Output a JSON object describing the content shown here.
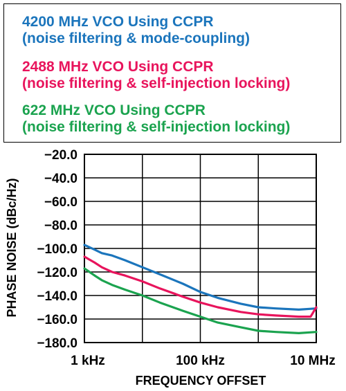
{
  "chart_data": {
    "type": "line",
    "xlabel": "FREQUENCY OFFSET",
    "ylabel": "PHASE NOISE (dBc/Hz)",
    "x_scale": "log",
    "xlim": [
      1000,
      10000000
    ],
    "ylim": [
      -180,
      -20
    ],
    "x_tick_values": [
      1000,
      100000,
      10000000
    ],
    "x_tick_labels": [
      "1 kHz",
      "100 kHz",
      "10 MHz"
    ],
    "y_tick_values": [
      -20,
      -40,
      -60,
      -80,
      -100,
      -120,
      -140,
      -160,
      -180
    ],
    "y_tick_labels": [
      "−20.0",
      "−40.0",
      "−60.0",
      "−80.0",
      "−100.0",
      "−120.0",
      "−140.0",
      "−160.0",
      "−180.0"
    ],
    "grid": true,
    "legend_position": "top",
    "series": [
      {
        "name": "4200 MHz VCO Using CCPR",
        "name_line2": "(noise filtering & mode-coupling)",
        "color": "#1b75bc",
        "x": [
          1000,
          1500,
          2000,
          3000,
          5000,
          10000,
          20000,
          50000,
          100000,
          200000,
          500000,
          1000000,
          2000000,
          5000000,
          10000000
        ],
        "y": [
          -97,
          -101,
          -104,
          -106,
          -110,
          -116,
          -122,
          -130,
          -137,
          -142,
          -147,
          -150,
          -151,
          -152,
          -151
        ]
      },
      {
        "name": "2488 MHz VCO Using CCPR",
        "name_line2": "(noise filtering & self-injection locking)",
        "color": "#e8145c",
        "x": [
          1000,
          1500,
          2000,
          3000,
          5000,
          10000,
          20000,
          50000,
          100000,
          200000,
          500000,
          1000000,
          2000000,
          5000000,
          8000000,
          10000000
        ],
        "y": [
          -107,
          -112,
          -116,
          -120,
          -123,
          -128,
          -134,
          -141,
          -146,
          -150,
          -154,
          -156,
          -157,
          -158,
          -158,
          -150
        ]
      },
      {
        "name": "622 MHz VCO Using CCPR",
        "name_line2": "(noise filtering & self-injection locking)",
        "color": "#1ba34f",
        "x": [
          1000,
          1500,
          2000,
          3000,
          5000,
          10000,
          20000,
          50000,
          100000,
          200000,
          500000,
          1000000,
          2000000,
          5000000,
          10000000
        ],
        "y": [
          -117,
          -123,
          -127,
          -131,
          -135,
          -140,
          -146,
          -153,
          -158,
          -163,
          -167,
          -170,
          -171,
          -172,
          -171
        ]
      }
    ]
  }
}
